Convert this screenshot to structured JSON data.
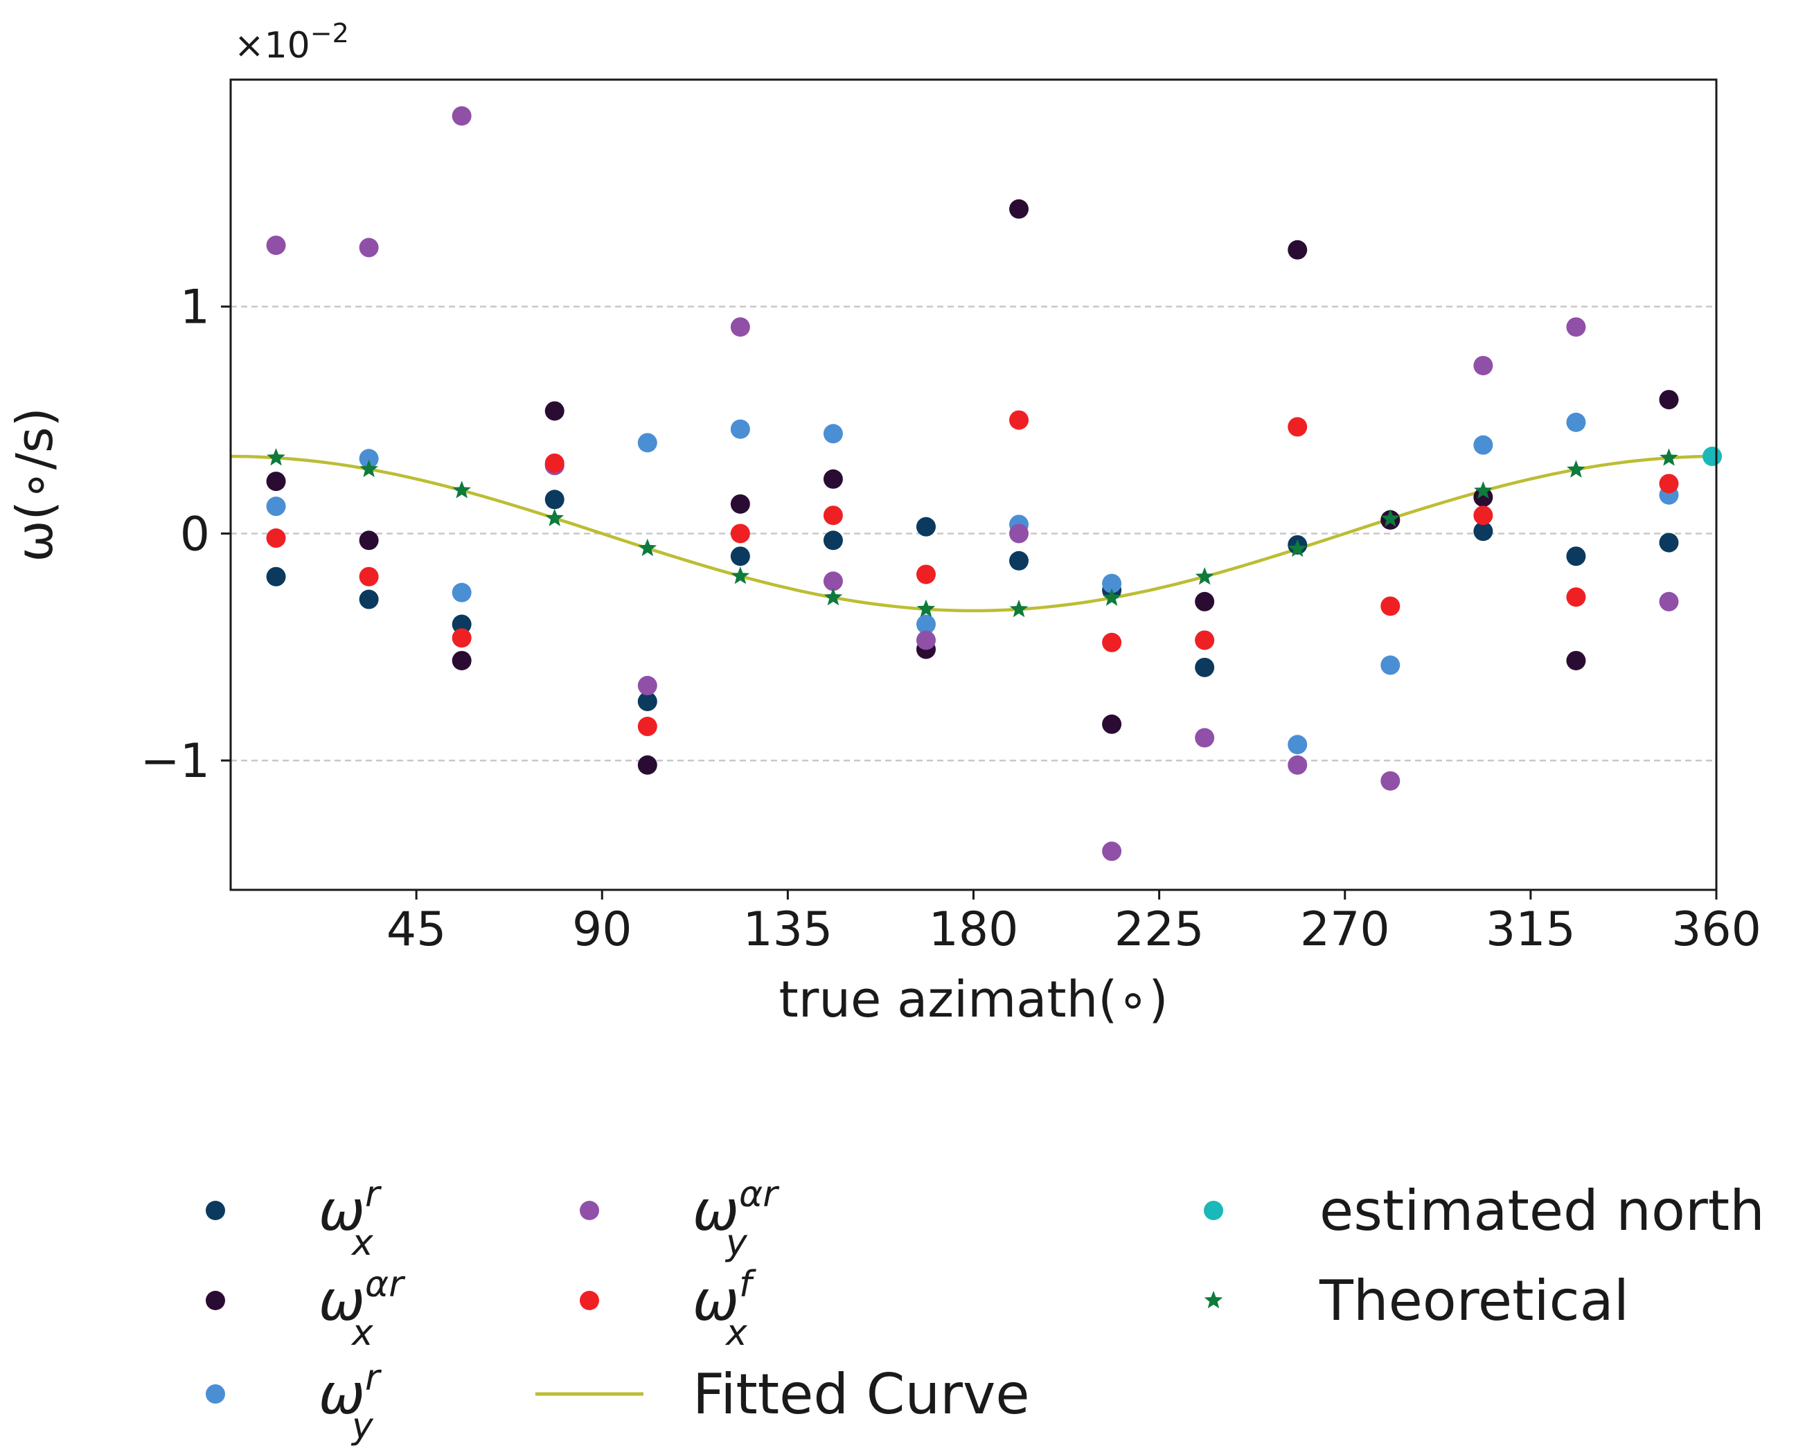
{
  "chart_data": {
    "type": "scatter",
    "xlabel": "true azimath(∘)",
    "ylabel": "ω(∘/s)",
    "y_offset_label": "×10",
    "y_offset_exponent": "−2",
    "xlim": [
      0,
      360
    ],
    "ylim": [
      -1.57,
      2.0
    ],
    "x_ticks": [
      45,
      90,
      135,
      180,
      225,
      270,
      315,
      360
    ],
    "x_tick_labels": [
      "45",
      "90",
      "135",
      "180",
      "225",
      "270",
      "315",
      "360"
    ],
    "y_ticks": [
      -1,
      0,
      1
    ],
    "y_tick_labels": [
      "−1",
      "0",
      "1"
    ],
    "grid": "horizontal dashed",
    "legend_position": "below the plot, three columns",
    "series": [
      {
        "name": "ω_x^r",
        "sym": "ω",
        "sup": "r",
        "sub": "x",
        "color": "#0b3a5e",
        "marker": "circle",
        "x": [
          11,
          33.5,
          56,
          78.5,
          101,
          123.5,
          146,
          168.5,
          191,
          213.5,
          236,
          258.5,
          281,
          303.5,
          326,
          348.5
        ],
        "y": [
          -0.19,
          -0.29,
          -0.4,
          0.15,
          -0.74,
          -0.1,
          -0.03,
          0.03,
          -0.12,
          -0.25,
          -0.59,
          -0.05,
          0.06,
          0.01,
          -0.1,
          -0.04
        ]
      },
      {
        "name": "ω_x^αr",
        "sym": "ω",
        "sup": "αr",
        "sub": "x",
        "color": "#2a0c33",
        "marker": "circle",
        "x": [
          11,
          33.5,
          56,
          78.5,
          101,
          123.5,
          146,
          168.5,
          191,
          213.5,
          236,
          258.5,
          281,
          303.5,
          326,
          348.5
        ],
        "y": [
          0.23,
          -0.03,
          -0.56,
          0.54,
          -1.02,
          0.13,
          0.24,
          -0.51,
          1.43,
          -0.84,
          -0.3,
          1.25,
          0.06,
          0.16,
          -0.56,
          0.59
        ]
      },
      {
        "name": "ω_y^r",
        "sym": "ω",
        "sup": "r",
        "sub": "y",
        "color": "#4a8fd4",
        "marker": "circle",
        "x": [
          11,
          33.5,
          56,
          78.5,
          101,
          123.5,
          146,
          168.5,
          191,
          213.5,
          236,
          258.5,
          281,
          303.5,
          326,
          348.5
        ],
        "y": [
          0.12,
          0.33,
          -0.26,
          0.3,
          0.4,
          0.46,
          0.44,
          -0.4,
          0.04,
          -0.22,
          -0.47,
          -0.93,
          -0.58,
          0.39,
          0.49,
          0.17
        ]
      },
      {
        "name": "ω_y^αr",
        "sym": "ω",
        "sup": "αr",
        "sub": "y",
        "color": "#9050a8",
        "marker": "circle",
        "x": [
          11,
          33.5,
          56,
          78.5,
          101,
          123.5,
          146,
          168.5,
          191,
          213.5,
          236,
          258.5,
          281,
          303.5,
          326,
          348.5
        ],
        "y": [
          1.27,
          1.26,
          1.84,
          0.3,
          -0.67,
          0.91,
          -0.21,
          -0.47,
          0.0,
          -1.4,
          -0.9,
          -1.02,
          -1.09,
          0.74,
          0.91,
          -0.3
        ]
      },
      {
        "name": "ω_x^f",
        "sym": "ω",
        "sup": "f",
        "sub": "x",
        "color": "#ef2024",
        "marker": "circle",
        "x": [
          11,
          33.5,
          56,
          78.5,
          101,
          123.5,
          146,
          168.5,
          191,
          213.5,
          236,
          258.5,
          281,
          303.5,
          326,
          348.5
        ],
        "y": [
          -0.02,
          -0.19,
          -0.46,
          0.31,
          -0.85,
          0.0,
          0.08,
          -0.18,
          0.5,
          -0.48,
          -0.47,
          0.47,
          -0.32,
          0.08,
          -0.28,
          0.22
        ]
      },
      {
        "name": "Fitted Curve",
        "color": "#bcbd33",
        "marker": "line",
        "amplitude": 0.34,
        "peak_azimuth": 0
      },
      {
        "name": "estimated north",
        "color": "#1ab8b8",
        "marker": "circle",
        "x": [
          359
        ],
        "y": [
          0.34
        ]
      },
      {
        "name": "Theoretical",
        "color": "#0e7a3c",
        "marker": "star",
        "x": [
          11,
          33.5,
          56,
          78.5,
          101,
          123.5,
          146,
          168.5,
          191,
          213.5,
          236,
          258.5,
          281,
          303.5,
          326,
          348.5
        ],
        "y": [
          0.334,
          0.283,
          0.19,
          0.067,
          -0.065,
          -0.188,
          -0.282,
          -0.333,
          -0.334,
          -0.284,
          -0.191,
          -0.068,
          0.065,
          0.188,
          0.281,
          0.333
        ]
      }
    ]
  }
}
